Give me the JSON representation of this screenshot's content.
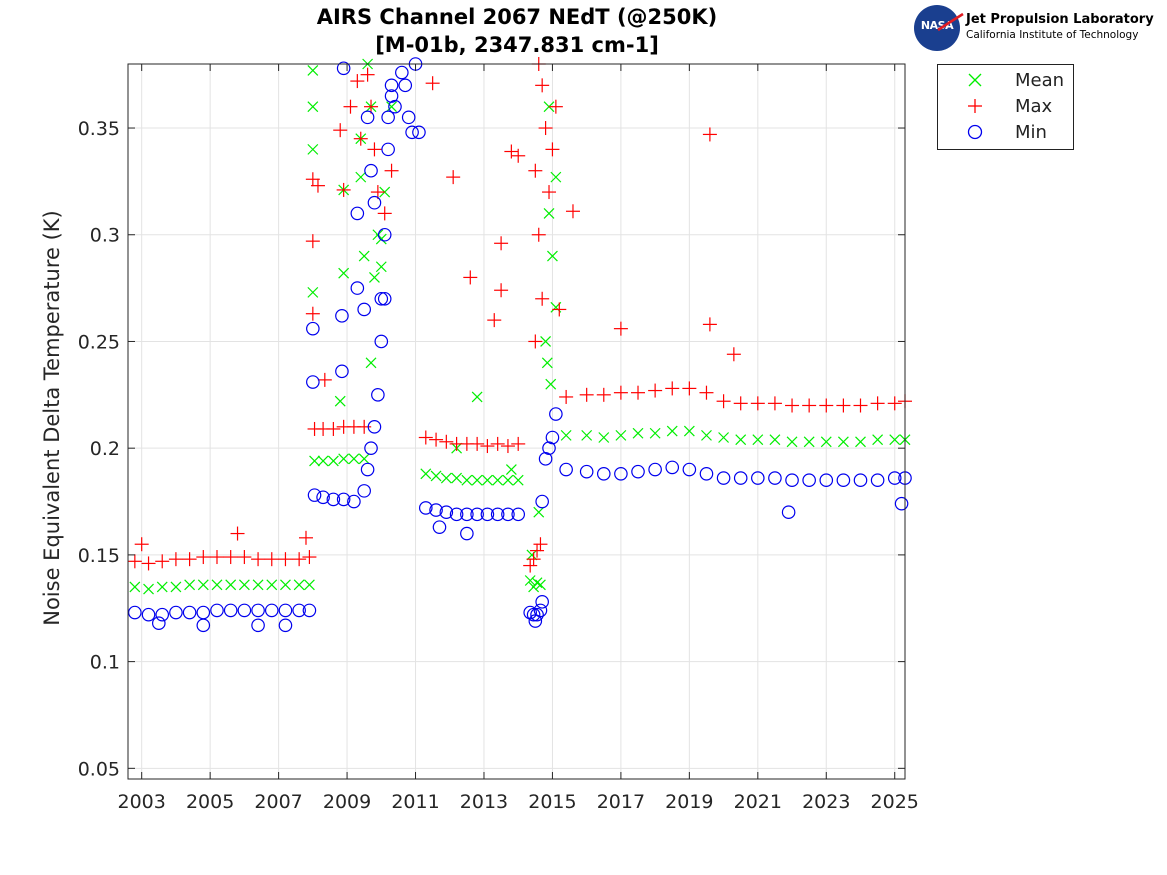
{
  "title_lines": [
    "AIRS Channel 2067 NEdT (@250K)",
    "[M-01b, 2347.831 cm-1]"
  ],
  "logo": {
    "name": "Jet Propulsion Laboratory",
    "subtitle": "California Institute of Technology",
    "mark": "NASA"
  },
  "chart_data": {
    "type": "scatter",
    "title": "AIRS Channel 2067 NEdT (@250K)\n[M-01b, 2347.831 cm-1]",
    "xlabel": "",
    "ylabel": "Noise Equivalent Delta Temperature (K)",
    "xlim": [
      2002.6,
      2025.3
    ],
    "ylim": [
      0.045,
      0.38
    ],
    "xticks": [
      2003,
      2005,
      2007,
      2009,
      2011,
      2013,
      2015,
      2017,
      2019,
      2021,
      2023,
      2025
    ],
    "xtick_labels": [
      "2003",
      "2005",
      "2007",
      "2009",
      "2011",
      "2013",
      "2015",
      "2017",
      "2019",
      "2021",
      "2023",
      "2025"
    ],
    "yticks": [
      0.05,
      0.1,
      0.15,
      0.2,
      0.25,
      0.3,
      0.35
    ],
    "ytick_labels": [
      "0.05",
      "0.1",
      "0.15",
      "0.2",
      "0.25",
      "0.3",
      "0.35"
    ],
    "grid": true,
    "legend_position": "outside-top-right",
    "series": [
      {
        "name": "Mean",
        "marker": "x",
        "color": "#00ee00",
        "points": [
          [
            2002.8,
            0.135
          ],
          [
            2003.2,
            0.134
          ],
          [
            2003.6,
            0.135
          ],
          [
            2004.0,
            0.135
          ],
          [
            2004.4,
            0.136
          ],
          [
            2004.8,
            0.136
          ],
          [
            2005.2,
            0.136
          ],
          [
            2005.6,
            0.136
          ],
          [
            2006.0,
            0.136
          ],
          [
            2006.4,
            0.136
          ],
          [
            2006.8,
            0.136
          ],
          [
            2007.2,
            0.136
          ],
          [
            2007.6,
            0.136
          ],
          [
            2007.9,
            0.136
          ],
          [
            2008.05,
            0.194
          ],
          [
            2008.3,
            0.194
          ],
          [
            2008.6,
            0.194
          ],
          [
            2008.9,
            0.195
          ],
          [
            2009.2,
            0.195
          ],
          [
            2009.5,
            0.195
          ],
          [
            2009.7,
            0.24
          ],
          [
            2009.8,
            0.28
          ],
          [
            2009.9,
            0.3
          ],
          [
            2010.1,
            0.32
          ],
          [
            2010.3,
            0.36
          ],
          [
            2008.0,
            0.36
          ],
          [
            2008.0,
            0.377
          ],
          [
            2008.0,
            0.34
          ],
          [
            2008.0,
            0.273
          ],
          [
            2008.9,
            0.282
          ],
          [
            2008.9,
            0.321
          ],
          [
            2009.4,
            0.345
          ],
          [
            2009.4,
            0.327
          ],
          [
            2009.5,
            0.29
          ],
          [
            2009.6,
            0.38
          ],
          [
            2009.7,
            0.36
          ],
          [
            2010.0,
            0.298
          ],
          [
            2010.0,
            0.285
          ],
          [
            2008.8,
            0.222
          ],
          [
            2011.3,
            0.188
          ],
          [
            2011.6,
            0.187
          ],
          [
            2011.9,
            0.186
          ],
          [
            2012.2,
            0.186
          ],
          [
            2012.5,
            0.185
          ],
          [
            2012.8,
            0.185
          ],
          [
            2013.1,
            0.185
          ],
          [
            2013.4,
            0.185
          ],
          [
            2013.7,
            0.185
          ],
          [
            2014.0,
            0.185
          ],
          [
            2012.8,
            0.224
          ],
          [
            2012.2,
            0.2
          ],
          [
            2013.8,
            0.19
          ],
          [
            2014.35,
            0.138
          ],
          [
            2014.45,
            0.135
          ],
          [
            2014.55,
            0.137
          ],
          [
            2014.65,
            0.136
          ],
          [
            2014.4,
            0.15
          ],
          [
            2014.6,
            0.17
          ],
          [
            2014.9,
            0.36
          ],
          [
            2014.9,
            0.31
          ],
          [
            2015.0,
            0.29
          ],
          [
            2015.1,
            0.327
          ],
          [
            2015.1,
            0.266
          ],
          [
            2014.8,
            0.25
          ],
          [
            2014.85,
            0.24
          ],
          [
            2014.95,
            0.23
          ],
          [
            2015.4,
            0.206
          ],
          [
            2016.0,
            0.206
          ],
          [
            2016.5,
            0.205
          ],
          [
            2017.0,
            0.206
          ],
          [
            2017.5,
            0.207
          ],
          [
            2018.0,
            0.207
          ],
          [
            2018.5,
            0.208
          ],
          [
            2019.0,
            0.208
          ],
          [
            2019.5,
            0.206
          ],
          [
            2020.0,
            0.205
          ],
          [
            2020.5,
            0.204
          ],
          [
            2021.0,
            0.204
          ],
          [
            2021.5,
            0.204
          ],
          [
            2022.0,
            0.203
          ],
          [
            2022.5,
            0.203
          ],
          [
            2023.0,
            0.203
          ],
          [
            2023.5,
            0.203
          ],
          [
            2024.0,
            0.203
          ],
          [
            2024.5,
            0.204
          ],
          [
            2025.0,
            0.204
          ],
          [
            2025.3,
            0.204
          ]
        ]
      },
      {
        "name": "Max",
        "marker": "+",
        "color": "#ff0000",
        "points": [
          [
            2002.8,
            0.147
          ],
          [
            2003.2,
            0.146
          ],
          [
            2003.6,
            0.147
          ],
          [
            2004.0,
            0.148
          ],
          [
            2004.4,
            0.148
          ],
          [
            2004.8,
            0.149
          ],
          [
            2005.2,
            0.149
          ],
          [
            2005.6,
            0.149
          ],
          [
            2006.0,
            0.149
          ],
          [
            2006.4,
            0.148
          ],
          [
            2006.8,
            0.148
          ],
          [
            2007.2,
            0.148
          ],
          [
            2007.6,
            0.148
          ],
          [
            2007.9,
            0.149
          ],
          [
            2003.0,
            0.155
          ],
          [
            2005.8,
            0.16
          ],
          [
            2007.8,
            0.158
          ],
          [
            2008.05,
            0.209
          ],
          [
            2008.3,
            0.209
          ],
          [
            2008.6,
            0.209
          ],
          [
            2008.9,
            0.21
          ],
          [
            2009.2,
            0.21
          ],
          [
            2009.5,
            0.21
          ],
          [
            2008.0,
            0.297
          ],
          [
            2008.0,
            0.326
          ],
          [
            2008.15,
            0.323
          ],
          [
            2008.0,
            0.263
          ],
          [
            2008.35,
            0.232
          ],
          [
            2008.8,
            0.349
          ],
          [
            2008.9,
            0.321
          ],
          [
            2009.1,
            0.36
          ],
          [
            2009.3,
            0.372
          ],
          [
            2009.4,
            0.345
          ],
          [
            2009.6,
            0.375
          ],
          [
            2009.7,
            0.36
          ],
          [
            2009.8,
            0.34
          ],
          [
            2009.9,
            0.32
          ],
          [
            2010.1,
            0.31
          ],
          [
            2010.3,
            0.33
          ],
          [
            2011.5,
            0.371
          ],
          [
            2011.3,
            0.205
          ],
          [
            2011.6,
            0.204
          ],
          [
            2011.9,
            0.203
          ],
          [
            2012.2,
            0.202
          ],
          [
            2012.5,
            0.202
          ],
          [
            2012.8,
            0.202
          ],
          [
            2013.1,
            0.201
          ],
          [
            2013.4,
            0.202
          ],
          [
            2013.7,
            0.201
          ],
          [
            2014.0,
            0.202
          ],
          [
            2012.1,
            0.327
          ],
          [
            2012.6,
            0.28
          ],
          [
            2013.3,
            0.26
          ],
          [
            2013.5,
            0.296
          ],
          [
            2013.5,
            0.274
          ],
          [
            2013.8,
            0.339
          ],
          [
            2014.0,
            0.337
          ],
          [
            2014.35,
            0.145
          ],
          [
            2014.45,
            0.148
          ],
          [
            2014.55,
            0.152
          ],
          [
            2014.65,
            0.155
          ],
          [
            2014.6,
            0.38
          ],
          [
            2014.7,
            0.37
          ],
          [
            2014.8,
            0.35
          ],
          [
            2014.5,
            0.33
          ],
          [
            2014.9,
            0.32
          ],
          [
            2014.6,
            0.3
          ],
          [
            2015.0,
            0.34
          ],
          [
            2015.1,
            0.36
          ],
          [
            2014.7,
            0.27
          ],
          [
            2015.2,
            0.265
          ],
          [
            2015.6,
            0.311
          ],
          [
            2014.5,
            0.25
          ],
          [
            2015.4,
            0.224
          ],
          [
            2016.0,
            0.225
          ],
          [
            2016.5,
            0.225
          ],
          [
            2017.0,
            0.226
          ],
          [
            2017.5,
            0.226
          ],
          [
            2018.0,
            0.227
          ],
          [
            2018.5,
            0.228
          ],
          [
            2019.0,
            0.228
          ],
          [
            2019.5,
            0.226
          ],
          [
            2020.0,
            0.222
          ],
          [
            2020.5,
            0.221
          ],
          [
            2021.0,
            0.221
          ],
          [
            2021.5,
            0.221
          ],
          [
            2022.0,
            0.22
          ],
          [
            2022.5,
            0.22
          ],
          [
            2023.0,
            0.22
          ],
          [
            2023.5,
            0.22
          ],
          [
            2024.0,
            0.22
          ],
          [
            2024.5,
            0.221
          ],
          [
            2025.0,
            0.221
          ],
          [
            2025.3,
            0.222
          ],
          [
            2017.0,
            0.256
          ],
          [
            2019.6,
            0.347
          ],
          [
            2019.6,
            0.258
          ],
          [
            2020.3,
            0.244
          ]
        ]
      },
      {
        "name": "Min",
        "marker": "o",
        "color": "#0000ee",
        "points": [
          [
            2002.8,
            0.123
          ],
          [
            2003.2,
            0.122
          ],
          [
            2003.6,
            0.122
          ],
          [
            2004.0,
            0.123
          ],
          [
            2004.4,
            0.123
          ],
          [
            2004.8,
            0.123
          ],
          [
            2005.2,
            0.124
          ],
          [
            2005.6,
            0.124
          ],
          [
            2006.0,
            0.124
          ],
          [
            2006.4,
            0.124
          ],
          [
            2006.8,
            0.124
          ],
          [
            2007.2,
            0.124
          ],
          [
            2007.6,
            0.124
          ],
          [
            2007.9,
            0.124
          ],
          [
            2003.5,
            0.118
          ],
          [
            2004.8,
            0.117
          ],
          [
            2006.4,
            0.117
          ],
          [
            2007.2,
            0.117
          ],
          [
            2008.05,
            0.178
          ],
          [
            2008.3,
            0.177
          ],
          [
            2008.6,
            0.176
          ],
          [
            2008.9,
            0.176
          ],
          [
            2009.2,
            0.175
          ],
          [
            2009.5,
            0.18
          ],
          [
            2009.6,
            0.19
          ],
          [
            2009.7,
            0.2
          ],
          [
            2009.8,
            0.21
          ],
          [
            2009.9,
            0.225
          ],
          [
            2010.0,
            0.25
          ],
          [
            2010.0,
            0.27
          ],
          [
            2010.1,
            0.3
          ],
          [
            2008.0,
            0.256
          ],
          [
            2008.0,
            0.231
          ],
          [
            2008.85,
            0.262
          ],
          [
            2008.85,
            0.236
          ],
          [
            2008.9,
            0.378
          ],
          [
            2009.3,
            0.31
          ],
          [
            2009.3,
            0.275
          ],
          [
            2009.5,
            0.265
          ],
          [
            2009.6,
            0.355
          ],
          [
            2009.7,
            0.33
          ],
          [
            2009.8,
            0.315
          ],
          [
            2010.1,
            0.27
          ],
          [
            2010.2,
            0.34
          ],
          [
            2010.2,
            0.355
          ],
          [
            2010.3,
            0.365
          ],
          [
            2010.3,
            0.37
          ],
          [
            2010.4,
            0.36
          ],
          [
            2010.6,
            0.376
          ],
          [
            2010.7,
            0.37
          ],
          [
            2010.8,
            0.355
          ],
          [
            2010.9,
            0.348
          ],
          [
            2011.0,
            0.38
          ],
          [
            2011.1,
            0.348
          ],
          [
            2011.3,
            0.172
          ],
          [
            2011.6,
            0.171
          ],
          [
            2011.9,
            0.17
          ],
          [
            2012.2,
            0.169
          ],
          [
            2012.5,
            0.169
          ],
          [
            2012.8,
            0.169
          ],
          [
            2013.1,
            0.169
          ],
          [
            2013.4,
            0.169
          ],
          [
            2013.7,
            0.169
          ],
          [
            2014.0,
            0.169
          ],
          [
            2012.5,
            0.16
          ],
          [
            2011.7,
            0.163
          ],
          [
            2014.35,
            0.123
          ],
          [
            2014.45,
            0.122
          ],
          [
            2014.55,
            0.122
          ],
          [
            2014.65,
            0.124
          ],
          [
            2014.7,
            0.128
          ],
          [
            2014.5,
            0.119
          ],
          [
            2014.7,
            0.175
          ],
          [
            2014.8,
            0.195
          ],
          [
            2014.9,
            0.2
          ],
          [
            2015.0,
            0.205
          ],
          [
            2015.1,
            0.216
          ],
          [
            2015.4,
            0.19
          ],
          [
            2016.0,
            0.189
          ],
          [
            2016.5,
            0.188
          ],
          [
            2017.0,
            0.188
          ],
          [
            2017.5,
            0.189
          ],
          [
            2018.0,
            0.19
          ],
          [
            2018.5,
            0.191
          ],
          [
            2019.0,
            0.19
          ],
          [
            2019.5,
            0.188
          ],
          [
            2020.0,
            0.186
          ],
          [
            2020.5,
            0.186
          ],
          [
            2021.0,
            0.186
          ],
          [
            2021.5,
            0.186
          ],
          [
            2022.0,
            0.185
          ],
          [
            2022.5,
            0.185
          ],
          [
            2023.0,
            0.185
          ],
          [
            2023.5,
            0.185
          ],
          [
            2024.0,
            0.185
          ],
          [
            2024.5,
            0.185
          ],
          [
            2025.0,
            0.186
          ],
          [
            2025.3,
            0.186
          ],
          [
            2021.9,
            0.17
          ],
          [
            2025.2,
            0.174
          ]
        ]
      }
    ]
  },
  "legend": [
    {
      "label": "Mean",
      "marker": "x",
      "color": "#00ee00"
    },
    {
      "label": "Max",
      "marker": "+",
      "color": "#ff0000"
    },
    {
      "label": "Min",
      "marker": "o",
      "color": "#0000ee"
    }
  ]
}
